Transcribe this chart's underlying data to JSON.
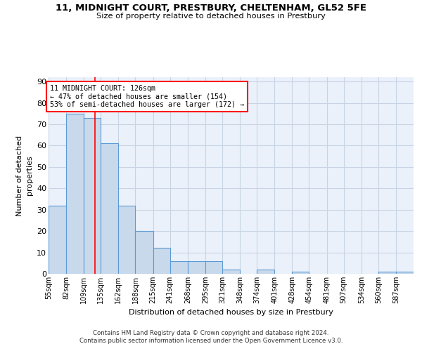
{
  "title": "11, MIDNIGHT COURT, PRESTBURY, CHELTENHAM, GL52 5FE",
  "subtitle": "Size of property relative to detached houses in Prestbury",
  "xlabel": "Distribution of detached houses by size in Prestbury",
  "ylabel": "Number of detached\nproperties",
  "bin_labels": [
    "55sqm",
    "82sqm",
    "109sqm",
    "135sqm",
    "162sqm",
    "188sqm",
    "215sqm",
    "241sqm",
    "268sqm",
    "295sqm",
    "321sqm",
    "348sqm",
    "374sqm",
    "401sqm",
    "428sqm",
    "454sqm",
    "481sqm",
    "507sqm",
    "534sqm",
    "560sqm",
    "587sqm"
  ],
  "bin_edges": [
    55,
    82,
    109,
    135,
    162,
    188,
    215,
    241,
    268,
    295,
    321,
    348,
    374,
    401,
    428,
    454,
    481,
    507,
    534,
    560,
    587,
    614
  ],
  "heights": [
    32,
    75,
    73,
    61,
    32,
    20,
    12,
    6,
    6,
    6,
    2,
    0,
    2,
    0,
    1,
    0,
    0,
    0,
    0,
    1,
    1
  ],
  "bar_color": "#c9d9ec",
  "bar_edge_color": "#5b9bd5",
  "grid_color": "#c8d4e3",
  "background_color": "#eaf1fb",
  "red_line_x": 126,
  "annotation_line1": "11 MIDNIGHT COURT: 126sqm",
  "annotation_line2": "← 47% of detached houses are smaller (154)",
  "annotation_line3": "53% of semi-detached houses are larger (172) →",
  "annotation_box_color": "white",
  "annotation_box_edge_color": "red",
  "ylim": [
    0,
    92
  ],
  "yticks": [
    0,
    10,
    20,
    30,
    40,
    50,
    60,
    70,
    80,
    90
  ],
  "footer_line1": "Contains HM Land Registry data © Crown copyright and database right 2024.",
  "footer_line2": "Contains public sector information licensed under the Open Government Licence v3.0."
}
